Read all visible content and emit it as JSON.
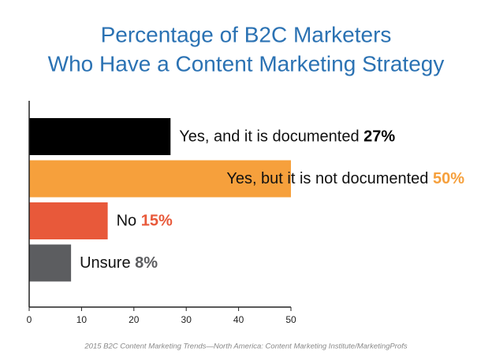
{
  "chart_data": {
    "type": "bar",
    "orientation": "horizontal",
    "title": [
      "Percentage of B2C Marketers",
      "Who Have a Content Marketing Strategy"
    ],
    "categories": [
      "Yes, and it is documented",
      "Yes, but it is not documented",
      "No",
      "Unsure"
    ],
    "values": [
      27,
      50,
      15,
      8
    ],
    "value_labels": [
      "27%",
      "50%",
      "15%",
      "8%"
    ],
    "colors": [
      "#000000",
      "#f6a03c",
      "#e8593a",
      "#5c5d60"
    ],
    "xlim": [
      0,
      50
    ],
    "xticks": [
      0,
      10,
      20,
      30,
      40,
      50
    ],
    "source": "2015 B2C Content Marketing Trends—North America: Content Marketing Institute/MarketingProfs"
  }
}
